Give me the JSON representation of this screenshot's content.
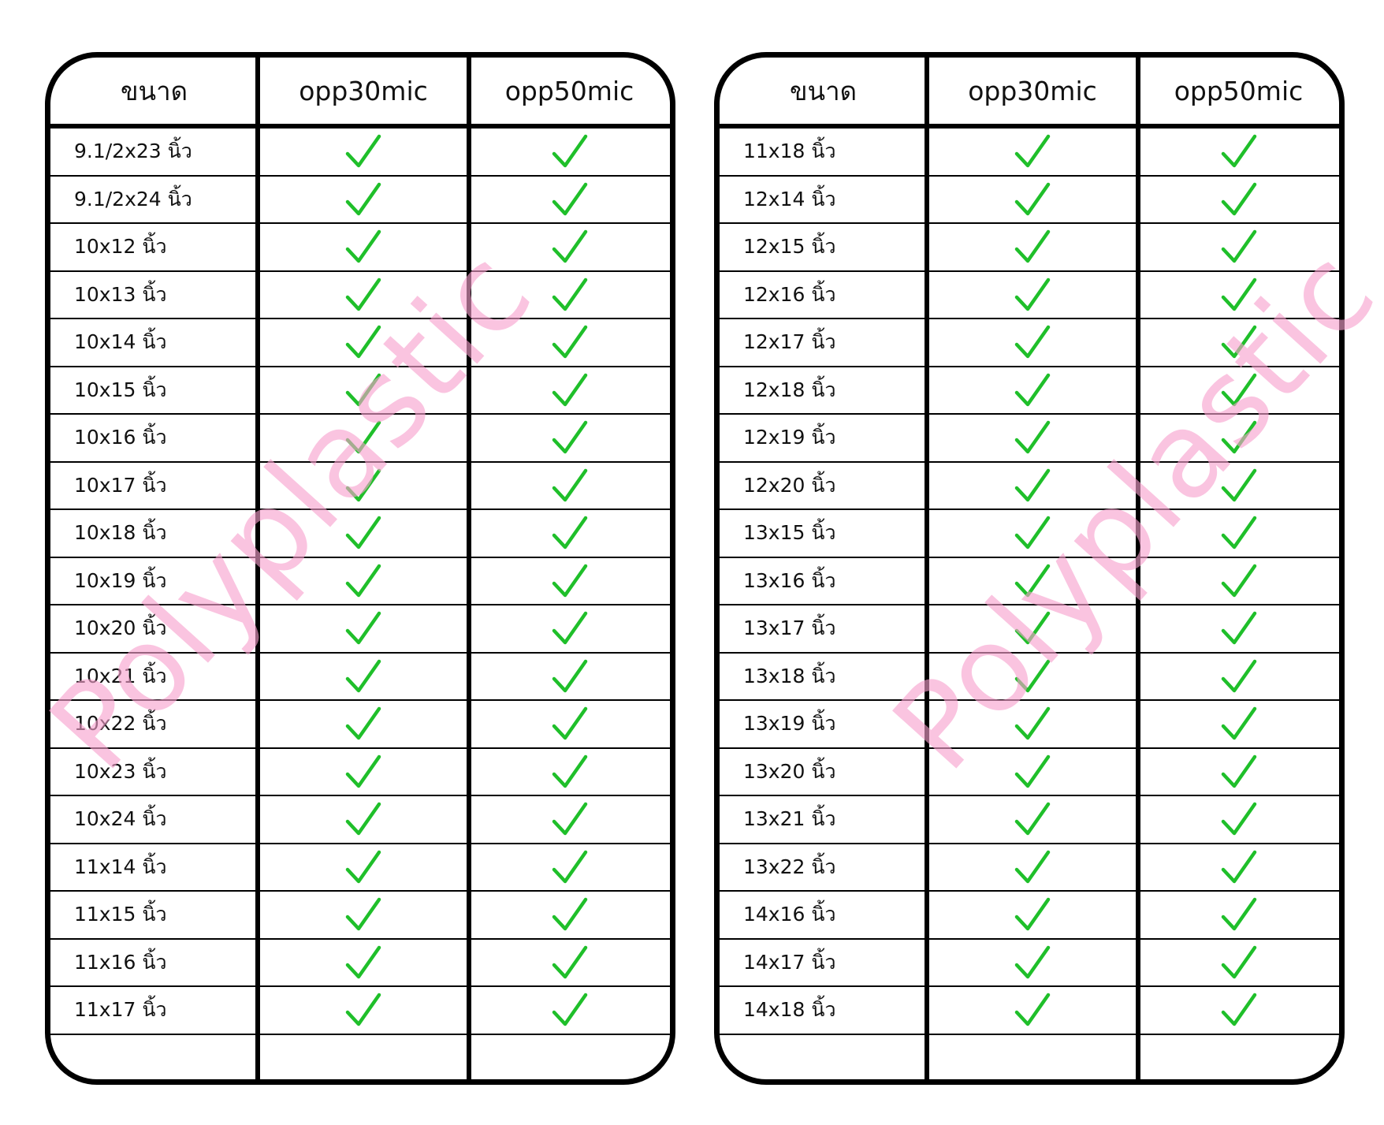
{
  "headers": {
    "size": "ขนาด",
    "opp30": "opp30mic",
    "opp50": "opp50mic"
  },
  "unit": "นิ้ว",
  "check_color": "#1fbf2a",
  "watermark_color": "#f7a0cd",
  "watermark_text": "Polyplastic",
  "check_icon": "green-checkmark",
  "left_table": [
    {
      "size": "9.1/2x23 นิ้ว",
      "opp30": true,
      "opp50": true
    },
    {
      "size": "9.1/2x24 นิ้ว",
      "opp30": true,
      "opp50": true
    },
    {
      "size": "10x12 นิ้ว",
      "opp30": true,
      "opp50": true
    },
    {
      "size": "10x13 นิ้ว",
      "opp30": true,
      "opp50": true
    },
    {
      "size": "10x14 นิ้ว",
      "opp30": true,
      "opp50": true
    },
    {
      "size": "10x15 นิ้ว",
      "opp30": true,
      "opp50": true
    },
    {
      "size": "10x16 นิ้ว",
      "opp30": true,
      "opp50": true
    },
    {
      "size": "10x17 นิ้ว",
      "opp30": true,
      "opp50": true
    },
    {
      "size": "10x18 นิ้ว",
      "opp30": true,
      "opp50": true
    },
    {
      "size": "10x19 นิ้ว",
      "opp30": true,
      "opp50": true
    },
    {
      "size": "10x20 นิ้ว",
      "opp30": true,
      "opp50": true
    },
    {
      "size": "10x21 นิ้ว",
      "opp30": true,
      "opp50": true
    },
    {
      "size": "10x22 นิ้ว",
      "opp30": true,
      "opp50": true
    },
    {
      "size": "10x23 นิ้ว",
      "opp30": true,
      "opp50": true
    },
    {
      "size": "10x24 นิ้ว",
      "opp30": true,
      "opp50": true
    },
    {
      "size": "11x14 นิ้ว",
      "opp30": true,
      "opp50": true
    },
    {
      "size": "11x15 นิ้ว",
      "opp30": true,
      "opp50": true
    },
    {
      "size": "11x16 นิ้ว",
      "opp30": true,
      "opp50": true
    },
    {
      "size": "11x17 นิ้ว",
      "opp30": true,
      "opp50": true
    },
    {
      "size": "",
      "opp30": false,
      "opp50": false
    }
  ],
  "right_table": [
    {
      "size": "11x18 นิ้ว",
      "opp30": true,
      "opp50": true
    },
    {
      "size": "12x14 นิ้ว",
      "opp30": true,
      "opp50": true
    },
    {
      "size": "12x15 นิ้ว",
      "opp30": true,
      "opp50": true
    },
    {
      "size": "12x16 นิ้ว",
      "opp30": true,
      "opp50": true
    },
    {
      "size": "12x17 นิ้ว",
      "opp30": true,
      "opp50": true
    },
    {
      "size": "12x18 นิ้ว",
      "opp30": true,
      "opp50": true
    },
    {
      "size": "12x19 นิ้ว",
      "opp30": true,
      "opp50": true
    },
    {
      "size": "12x20 นิ้ว",
      "opp30": true,
      "opp50": true
    },
    {
      "size": "13x15 นิ้ว",
      "opp30": true,
      "opp50": true
    },
    {
      "size": "13x16 นิ้ว",
      "opp30": true,
      "opp50": true
    },
    {
      "size": "13x17 นิ้ว",
      "opp30": true,
      "opp50": true
    },
    {
      "size": "13x18 นิ้ว",
      "opp30": true,
      "opp50": true
    },
    {
      "size": "13x19 นิ้ว",
      "opp30": true,
      "opp50": true
    },
    {
      "size": "13x20 นิ้ว",
      "opp30": true,
      "opp50": true
    },
    {
      "size": "13x21 นิ้ว",
      "opp30": true,
      "opp50": true
    },
    {
      "size": "13x22 นิ้ว",
      "opp30": true,
      "opp50": true
    },
    {
      "size": "14x16 นิ้ว",
      "opp30": true,
      "opp50": true
    },
    {
      "size": "14x17 นิ้ว",
      "opp30": true,
      "opp50": true
    },
    {
      "size": "14x18 นิ้ว",
      "opp30": true,
      "opp50": true
    },
    {
      "size": "",
      "opp30": false,
      "opp50": false
    }
  ]
}
